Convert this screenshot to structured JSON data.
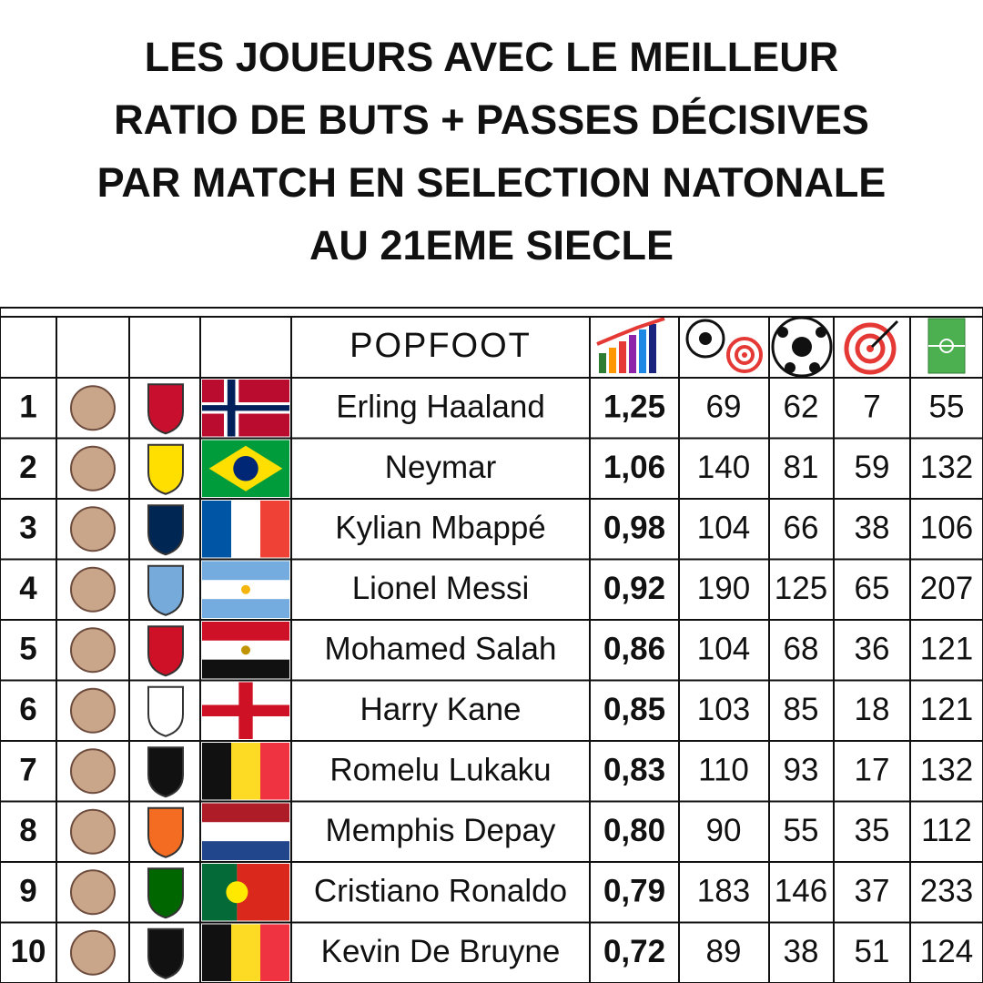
{
  "header": {
    "title_lines": [
      "LES JOUEURS AVEC LE MEILLEUR",
      "RATIO DE BUTS + PASSES DÉCISIVES",
      "PAR MATCH EN SELECTION NATONALE",
      "AU 21EME SIECLE"
    ]
  },
  "table": {
    "brand": "POPFOOT",
    "rows": [
      {
        "rank": 1,
        "name": "Erling Haaland",
        "ratio": "1,25",
        "ga": 69,
        "goals": 62,
        "assists": 7,
        "matches": 55
      },
      {
        "rank": 2,
        "name": "Neymar",
        "ratio": "1,06",
        "ga": 140,
        "goals": 81,
        "assists": 59,
        "matches": 132
      },
      {
        "rank": 3,
        "name": "Kylian Mbappé",
        "ratio": "0,98",
        "ga": 104,
        "goals": 66,
        "assists": 38,
        "matches": 106
      },
      {
        "rank": 4,
        "name": "Lionel Messi",
        "ratio": "0,92",
        "ga": 190,
        "goals": 125,
        "assists": 65,
        "matches": 207
      },
      {
        "rank": 5,
        "name": "Mohamed Salah",
        "ratio": "0,86",
        "ga": 104,
        "goals": 68,
        "assists": 36,
        "matches": 121
      },
      {
        "rank": 6,
        "name": "Harry Kane",
        "ratio": "0,85",
        "ga": 103,
        "goals": 85,
        "assists": 18,
        "matches": 121
      },
      {
        "rank": 7,
        "name": "Romelu Lukaku",
        "ratio": "0,83",
        "ga": 110,
        "goals": 93,
        "assists": 17,
        "matches": 132
      },
      {
        "rank": 8,
        "name": "Memphis Depay",
        "ratio": "0,80",
        "ga": 90,
        "goals": 55,
        "assists": 35,
        "matches": 112
      },
      {
        "rank": 9,
        "name": "Cristiano Ronaldo",
        "ratio": "0,79",
        "ga": 183,
        "goals": 146,
        "assists": 37,
        "matches": 233
      },
      {
        "rank": 10,
        "name": "Kevin De Bruyne",
        "ratio": "0,72",
        "ga": 89,
        "goals": 38,
        "assists": 51,
        "matches": 124
      }
    ]
  }
}
